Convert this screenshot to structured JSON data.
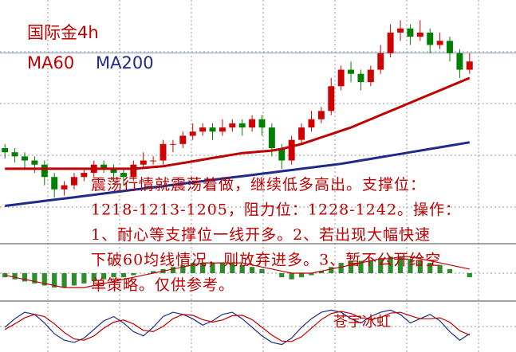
{
  "chart_data": [
    {
      "type": "candlestick",
      "title": "国际金4h",
      "open": [
        1217,
        1216,
        1215,
        1214,
        1213,
        1210,
        1207,
        1208,
        1210,
        1211,
        1213,
        1212,
        1211,
        1210,
        1213,
        1214,
        1214,
        1218,
        1218,
        1220,
        1221,
        1222,
        1221,
        1222,
        1223,
        1222,
        1224,
        1222,
        1217,
        1214,
        1219,
        1222,
        1224,
        1226,
        1232,
        1236,
        1235,
        1233,
        1236,
        1240,
        1245,
        1246,
        1244,
        1245,
        1242,
        1243,
        1240,
        1236
      ],
      "high": [
        1218,
        1217,
        1216,
        1215,
        1214,
        1211,
        1209,
        1211,
        1212,
        1214,
        1214,
        1213,
        1212,
        1214,
        1216,
        1215,
        1219,
        1219,
        1221,
        1223,
        1223,
        1223,
        1224,
        1224,
        1224,
        1225,
        1225,
        1223,
        1218,
        1220,
        1223,
        1226,
        1227,
        1234,
        1237,
        1238,
        1236,
        1237,
        1242,
        1247,
        1248,
        1247,
        1248,
        1246,
        1245,
        1244,
        1241,
        1240
      ],
      "low": [
        1214.5,
        1213.5,
        1212,
        1211,
        1208,
        1205,
        1205.5,
        1207,
        1209,
        1210,
        1211,
        1209,
        1208,
        1209,
        1212,
        1213,
        1213,
        1216,
        1217,
        1219,
        1220,
        1219,
        1220,
        1221,
        1220,
        1221,
        1220,
        1215,
        1212,
        1213,
        1218,
        1221,
        1223,
        1225,
        1231,
        1233,
        1231,
        1232,
        1235,
        1239,
        1243,
        1242,
        1243,
        1240,
        1241,
        1238,
        1234,
        1235
      ],
      "close": [
        1216,
        1215,
        1214,
        1213,
        1210,
        1207,
        1208,
        1210,
        1211,
        1213,
        1212,
        1211,
        1210,
        1213,
        1214,
        1214,
        1218,
        1218,
        1220,
        1221,
        1222,
        1221,
        1222,
        1223,
        1222,
        1224,
        1222,
        1217,
        1214,
        1219,
        1222,
        1224,
        1226,
        1232,
        1236,
        1235,
        1233,
        1236,
        1240,
        1245,
        1246,
        1244,
        1245,
        1242,
        1243,
        1240,
        1236,
        1238
      ],
      "up_color": "#d00000",
      "down_color": "#008000",
      "series": [
        {
          "name": "MA60",
          "color": "#c00000",
          "values": [
            1212,
            1212,
            1212,
            1212,
            1212,
            1212,
            1212,
            1212,
            1212,
            1212,
            1212,
            1212,
            1212,
            1212,
            1212.2,
            1212.4,
            1212.6,
            1213,
            1213.4,
            1213.8,
            1214.2,
            1214.6,
            1215,
            1215.4,
            1215.8,
            1216,
            1216.2,
            1216.4,
            1216.8,
            1217.4,
            1218,
            1218.8,
            1219.6,
            1220.4,
            1221.2,
            1222,
            1223,
            1224,
            1225,
            1226,
            1227,
            1228,
            1229,
            1230,
            1231,
            1232,
            1233,
            1234
          ]
        },
        {
          "name": "MA200",
          "color": "#1f2a8a",
          "values": [
            1203,
            1203.3,
            1203.6,
            1203.9,
            1204.2,
            1204.5,
            1204.8,
            1205.1,
            1205.4,
            1205.7,
            1206,
            1206.3,
            1206.6,
            1206.9,
            1207.2,
            1207.5,
            1207.8,
            1208.1,
            1208.4,
            1208.7,
            1209,
            1209.3,
            1209.6,
            1209.9,
            1210.2,
            1210.5,
            1210.8,
            1211.1,
            1211.4,
            1211.7,
            1212,
            1212.3,
            1212.6,
            1212.9,
            1213.2,
            1213.6,
            1214,
            1214.4,
            1214.8,
            1215.2,
            1215.6,
            1216,
            1216.4,
            1216.8,
            1217.2,
            1217.6,
            1218,
            1218.4
          ]
        }
      ],
      "ylim": [
        1195,
        1250
      ],
      "annotation": [
        "震荡行情就震荡着做，继续低多高出。支撑位：",
        "1218-1213-1205，阻力位：1228-1242。操作：",
        "1、耐心等支撑位一线开多。2、若出现大幅快速",
        "下破60均线情况，则放弃进多。3、暂不公开给空",
        "单策略。仅供参考。"
      ],
      "watermark": "苍宇冰虹"
    },
    {
      "type": "macd",
      "color": "#2e8b2e",
      "values": [
        -1,
        -1.5,
        -2,
        -2.5,
        -3,
        -3.5,
        -3.5,
        -3,
        -2.5,
        -2,
        -1.5,
        -1,
        -1,
        -0.5,
        0,
        0.5,
        1,
        1.5,
        2,
        2.5,
        2.5,
        2.5,
        2.5,
        2.5,
        2,
        1.5,
        1,
        0,
        -1,
        -1.5,
        -1,
        -0.5,
        0.5,
        1.5,
        2.5,
        3,
        3,
        3,
        3.5,
        4,
        4,
        3.5,
        3,
        2.5,
        2,
        1,
        0,
        -1
      ],
      "series": [
        {
          "color": "#c00000",
          "values": [
            -0.5,
            -1,
            -1.5,
            -2,
            -2.5,
            -3,
            -3.5,
            -3.5,
            -3.5,
            -3,
            -2.5,
            -2,
            -1.5,
            -1,
            -0.5,
            0,
            0.5,
            1,
            1.5,
            2,
            2.5,
            2.5,
            2.5,
            2.5,
            2.5,
            2,
            1.5,
            1,
            0.5,
            0,
            0,
            0,
            0.5,
            1,
            1.5,
            2,
            2.5,
            3,
            3.5,
            3.5,
            4,
            4,
            3.5,
            3,
            2.5,
            2,
            1.5,
            1
          ]
        }
      ],
      "ylim": [
        -6,
        6
      ]
    },
    {
      "type": "line",
      "series": [
        {
          "color": "#1f2a8a",
          "values": [
            50,
            70,
            85,
            80,
            60,
            35,
            20,
            15,
            25,
            45,
            65,
            75,
            60,
            40,
            30,
            50,
            75,
            85,
            80,
            70,
            55,
            65,
            80,
            85,
            70,
            50,
            30,
            15,
            10,
            25,
            50,
            70,
            85,
            90,
            85,
            70,
            60,
            75,
            85,
            90,
            80,
            60,
            70,
            80,
            65,
            40,
            20,
            35
          ]
        },
        {
          "color": "#c00000",
          "values": [
            45,
            58,
            72,
            80,
            75,
            58,
            38,
            23,
            20,
            30,
            48,
            62,
            67,
            58,
            43,
            40,
            52,
            70,
            80,
            78,
            68,
            62,
            67,
            77,
            78,
            68,
            50,
            32,
            18,
            17,
            28,
            48,
            68,
            82,
            87,
            82,
            72,
            68,
            73,
            83,
            85,
            77,
            70,
            70,
            72,
            62,
            42,
            32
          ]
        }
      ],
      "ylim": [
        0,
        100
      ]
    }
  ]
}
